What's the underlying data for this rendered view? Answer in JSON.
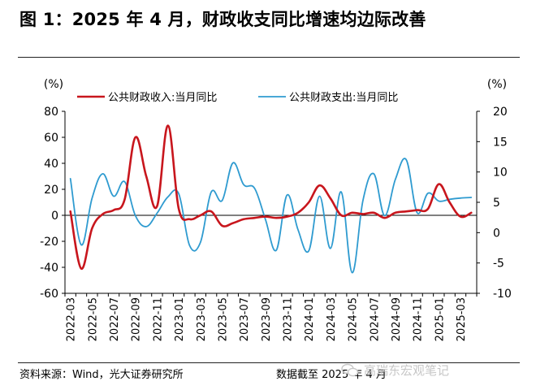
{
  "figure": {
    "title": "图 1：2025 年 4 月，财政收支同比增速均边际改善",
    "source": "资料来源：Wind，光大证券研究所",
    "date_note": "数据截至 2025 年 4 月",
    "watermark": "高瑞东宏观笔记",
    "watermark_icon": "wechat-logo-icon"
  },
  "chart_data": {
    "type": "line",
    "ylabel_left": "(%)",
    "ylabel_right": "(%)",
    "yleft": {
      "min": -60,
      "max": 80,
      "ticks": [
        80,
        60,
        40,
        20,
        0,
        -20,
        -40,
        -60
      ]
    },
    "yright": {
      "min": -10,
      "max": 20,
      "ticks": [
        20,
        15,
        10,
        5,
        0,
        -5,
        -10
      ]
    },
    "x_tick_labels": [
      "2022-03",
      "2022-05",
      "2022-07",
      "2022-09",
      "2022-11",
      "2023-01",
      "2023-03",
      "2023-05",
      "2023-07",
      "2023-09",
      "2023-11",
      "2024-01",
      "2024-03",
      "2024-05",
      "2024-07",
      "2024-09",
      "2024-11",
      "2025-01",
      "2025-03"
    ],
    "x": [
      "2022-03",
      "2022-04",
      "2022-05",
      "2022-06",
      "2022-07",
      "2022-08",
      "2022-09",
      "2022-10",
      "2022-11",
      "2022-12",
      "2023-01",
      "2023-02",
      "2023-03",
      "2023-04",
      "2023-05",
      "2023-06",
      "2023-07",
      "2023-08",
      "2023-09",
      "2023-10",
      "2023-11",
      "2023-12",
      "2024-01",
      "2024-02",
      "2024-03",
      "2024-04",
      "2024-05",
      "2024-06",
      "2024-07",
      "2024-08",
      "2024-09",
      "2024-10",
      "2024-11",
      "2024-12",
      "2025-01",
      "2025-02",
      "2025-03",
      "2025-04"
    ],
    "legend_position": "top",
    "series": [
      {
        "name": "公共财政收入:当月同比",
        "axis": "left",
        "color": "#c8161d",
        "values": [
          3,
          -41,
          -10,
          1,
          4,
          12,
          60,
          30,
          7,
          69,
          5,
          -3,
          0,
          3,
          -8,
          -6,
          -3,
          -2,
          -1,
          -2,
          -1,
          2,
          10,
          23,
          13,
          0,
          2,
          1,
          2,
          -2,
          2,
          3,
          4,
          5,
          24,
          10,
          -1,
          2
        ]
      },
      {
        "name": "公共财政支出:当月同比",
        "axis": "right",
        "color": "#2f9bd0",
        "values": [
          8.9,
          -2.0,
          5.7,
          9.7,
          6.0,
          8.4,
          2.8,
          1.0,
          3.2,
          5.9,
          6.4,
          -2.1,
          -1.6,
          6.7,
          5.3,
          11.5,
          7.9,
          7.3,
          2.2,
          -2.9,
          6.2,
          0.5,
          -3.0,
          6.0,
          -2.6,
          6.7,
          -6.6,
          5.3,
          9.7,
          2.8,
          8.8,
          12.0,
          3.3,
          6.5,
          5.2,
          5.5,
          5.7,
          5.8
        ]
      }
    ]
  }
}
